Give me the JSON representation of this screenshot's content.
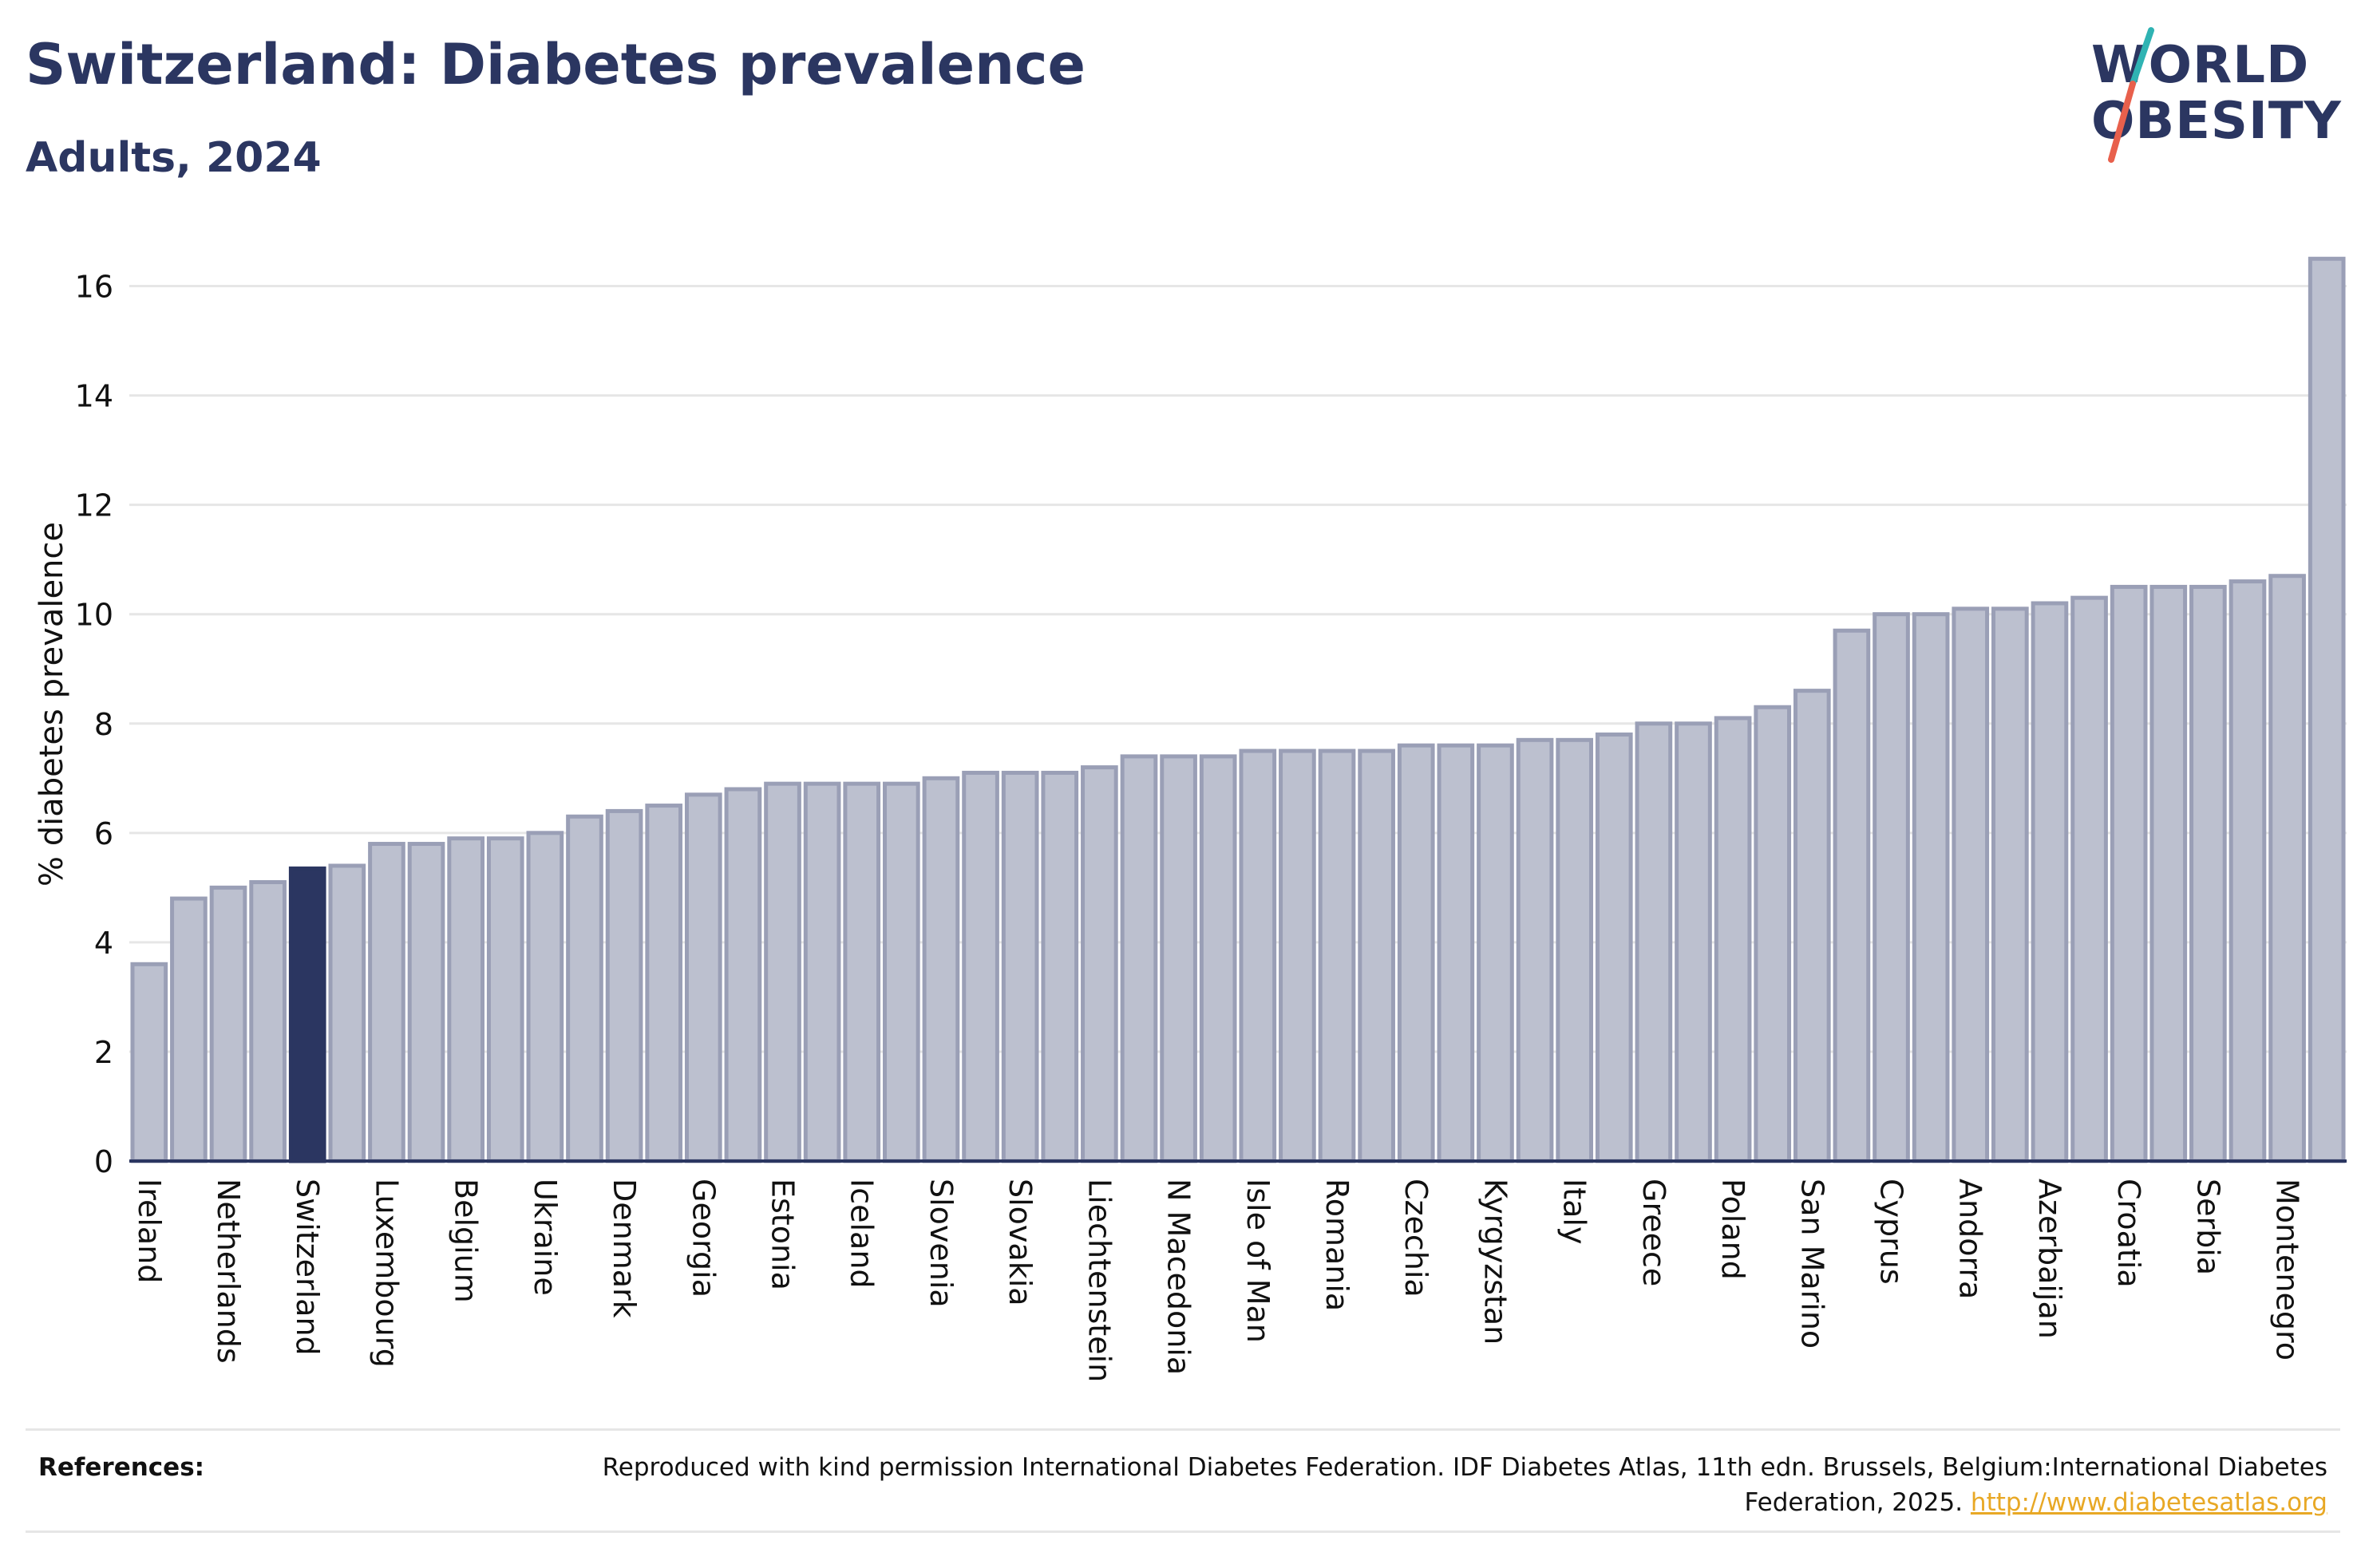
{
  "header": {
    "title": "Switzerland: Diabetes prevalence",
    "subtitle": "Adults, 2024"
  },
  "logo": {
    "line1": "WORLD",
    "line2": "OBESITY"
  },
  "chart_data": {
    "type": "bar",
    "title": "Switzerland: Diabetes prevalence",
    "subtitle": "Adults, 2024",
    "ylabel": "% diabetes prevalence",
    "xlabel": "",
    "ylim": [
      0,
      17
    ],
    "yticks": [
      0,
      2,
      4,
      6,
      8,
      10,
      12,
      14,
      16
    ],
    "grid": true,
    "highlight": "Switzerland",
    "colors": {
      "bar": "#bcc0cf",
      "bar_edge": "#9a9fb6",
      "highlight": "#2b3661",
      "grid": "#e6e6e6",
      "axis": "#2b3661"
    },
    "categories": [
      "Ireland",
      "",
      "Netherlands",
      "",
      "Switzerland",
      "",
      "Luxembourg",
      "",
      "Belgium",
      "",
      "Ukraine",
      "",
      "Denmark",
      "",
      "Georgia",
      "",
      "Estonia",
      "",
      "Iceland",
      "",
      "Slovenia",
      "",
      "Slovakia",
      "",
      "Liechtenstein",
      "",
      "N Macedonia",
      "",
      "Isle of Man",
      "",
      "Romania",
      "",
      "Czechia",
      "",
      "Kyrgyzstan",
      "",
      "Italy",
      "",
      "Greece",
      "",
      "Poland",
      "",
      "San Marino",
      "",
      "Cyprus",
      "",
      "Andorra",
      "",
      "Azerbaijan",
      "",
      "Croatia",
      "",
      "Serbia",
      "",
      "Montenegro",
      ""
    ],
    "values": [
      3.6,
      4.8,
      5.0,
      5.1,
      5.35,
      5.4,
      5.8,
      5.8,
      5.9,
      5.9,
      6.0,
      6.3,
      6.4,
      6.5,
      6.7,
      6.8,
      6.9,
      6.9,
      6.9,
      6.9,
      7.0,
      7.1,
      7.1,
      7.1,
      7.2,
      7.4,
      7.4,
      7.4,
      7.5,
      7.5,
      7.5,
      7.5,
      7.6,
      7.6,
      7.6,
      7.7,
      7.7,
      7.8,
      8.0,
      8.0,
      8.1,
      8.3,
      8.6,
      9.7,
      10.0,
      10.0,
      10.1,
      10.1,
      10.2,
      10.3,
      10.5,
      10.5,
      10.5,
      10.6,
      10.7,
      16.5
    ]
  },
  "references": {
    "label": "References:",
    "text": "Reproduced with kind permission International Diabetes Federation. IDF Diabetes Atlas, 11th edn. Brussels, Belgium:International Diabetes Federation, 2025.",
    "link": "http://www.diabetesatlas.org"
  }
}
